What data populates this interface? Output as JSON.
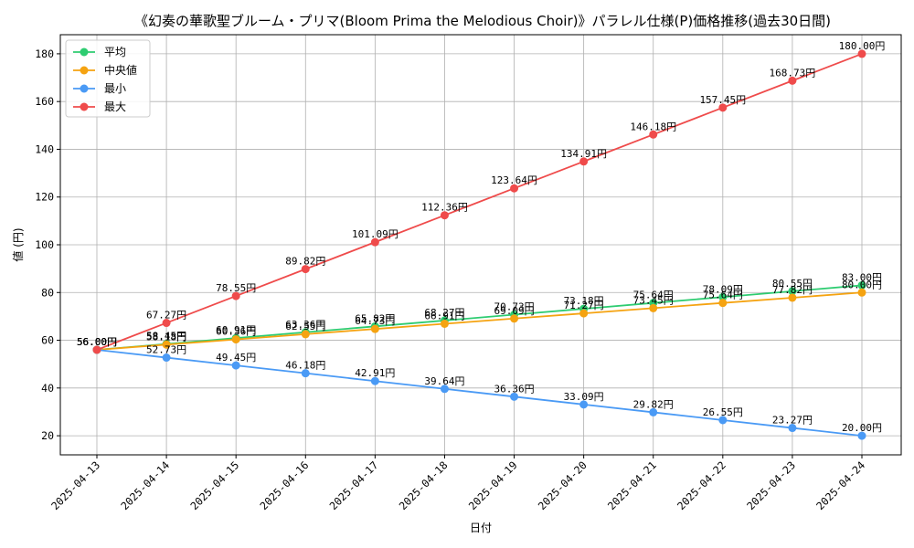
{
  "chart_data": {
    "type": "line",
    "title": "《幻奏の華歌聖ブルーム・プリマ(Bloom Prima the Melodious Choir)》パラレル仕様(P)価格推移(過去30日間)",
    "xlabel": "日付",
    "ylabel": "値 (円)",
    "ylim": [
      12,
      188
    ],
    "yticks": [
      20,
      40,
      60,
      80,
      100,
      120,
      140,
      160,
      180
    ],
    "grid": true,
    "legend_position": "top-left",
    "value_suffix": "円",
    "categories": [
      "2025-04-13",
      "2025-04-14",
      "2025-04-15",
      "2025-04-16",
      "2025-04-17",
      "2025-04-18",
      "2025-04-19",
      "2025-04-20",
      "2025-04-21",
      "2025-04-22",
      "2025-04-23",
      "2025-04-24"
    ],
    "series": [
      {
        "name": "平均",
        "color": "#2ecc71",
        "values": [
          56.0,
          58.45,
          60.91,
          63.36,
          65.82,
          68.27,
          70.73,
          73.18,
          75.64,
          78.09,
          80.55,
          83.0
        ]
      },
      {
        "name": "中央値",
        "color": "#f5a311",
        "values": [
          56.0,
          58.18,
          60.36,
          62.55,
          64.73,
          66.91,
          69.09,
          71.27,
          73.45,
          75.64,
          77.82,
          80.0
        ]
      },
      {
        "name": "最小",
        "color": "#4a9af5",
        "values": [
          56.0,
          52.73,
          49.45,
          46.18,
          42.91,
          39.64,
          36.36,
          33.09,
          29.82,
          26.55,
          23.27,
          20.0
        ]
      },
      {
        "name": "最大",
        "color": "#ef4b4b",
        "values": [
          56.0,
          67.27,
          78.55,
          89.82,
          101.09,
          112.36,
          123.64,
          134.91,
          146.18,
          157.45,
          168.73,
          180.0
        ]
      }
    ]
  }
}
